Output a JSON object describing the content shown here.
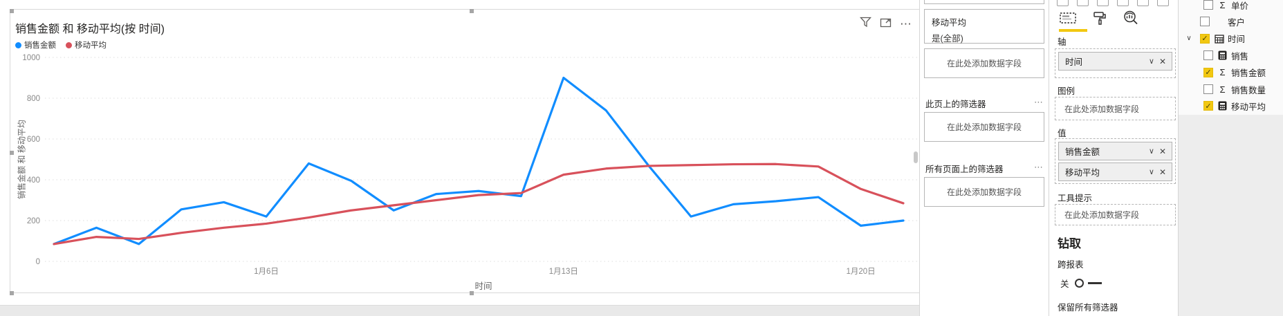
{
  "chart": {
    "title": "销售金额 和 移动平均(按 时间)",
    "y_axis": {
      "title": "销售金额 和 移动平均",
      "ticks": [
        0,
        200,
        400,
        600,
        800,
        1000
      ]
    },
    "x_axis": {
      "title": "时间",
      "tick_indices": [
        5,
        12,
        19
      ]
    },
    "chart_data": {
      "type": "line",
      "x": [
        "1月1日",
        "1月2日",
        "1月3日",
        "1月4日",
        "1月5日",
        "1月6日",
        "1月7日",
        "1月8日",
        "1月9日",
        "1月10日",
        "1月11日",
        "1月12日",
        "1月13日",
        "1月14日",
        "1月15日",
        "1月16日",
        "1月17日",
        "1月18日",
        "1月19日",
        "1月20日",
        "1月21日"
      ],
      "series": [
        {
          "name": "销售金额",
          "color": "#118DFF",
          "values": [
            85,
            165,
            85,
            255,
            290,
            220,
            480,
            395,
            250,
            330,
            345,
            320,
            900,
            740,
            470,
            220,
            280,
            295,
            315,
            175,
            200
          ]
        },
        {
          "name": "移动平均",
          "color": "#D8515B",
          "values": [
            85,
            120,
            110,
            140,
            165,
            185,
            215,
            250,
            275,
            300,
            325,
            335,
            425,
            455,
            468,
            472,
            476,
            477,
            465,
            355,
            285
          ]
        }
      ],
      "title": "销售金额 和 移动平均(按 时间)",
      "xlabel": "时间",
      "ylabel": "销售金额 和 移动平均",
      "ylim": [
        0,
        1000
      ],
      "grid": "horizontal-dotted",
      "legend_position": "top-left"
    }
  },
  "visual_header": {
    "more_icon": "⋯"
  },
  "filters_pane": {
    "filter_card": {
      "field": "移动平均",
      "condition": "是(全部)"
    },
    "drop_placeholder": "在此处添加数据字段",
    "page_filters_label": "此页上的筛选器",
    "all_pages_filters_label": "所有页面上的筛选器",
    "more_icon": "⋯"
  },
  "viz_pane": {
    "axis_label": "轴",
    "axis_fields": [
      "时间"
    ],
    "legend_label": "图例",
    "values_label": "值",
    "value_fields": [
      "销售金额",
      "移动平均"
    ],
    "tooltip_label": "工具提示",
    "drop_placeholder": "在此处添加数据字段",
    "drill_title": "钻取",
    "cross_report_label": "跨报表",
    "toggle_state": "关",
    "keep_filters_label": "保留所有筛选器",
    "chevron_icon": "∨",
    "remove_icon": "✕"
  },
  "fields_pane": {
    "check_glyph": "✓",
    "chevron_glyph": "∨",
    "items": [
      {
        "label": "单价",
        "checked": false,
        "icon": "sigma",
        "child": true
      },
      {
        "label": "客户",
        "checked": false,
        "icon": "none",
        "child": false
      },
      {
        "label": "时间",
        "checked": true,
        "icon": "calendar",
        "child": false,
        "expanded": true
      },
      {
        "label": "销售",
        "checked": false,
        "icon": "calc",
        "child": true
      },
      {
        "label": "销售金额",
        "checked": true,
        "icon": "sigma",
        "child": true
      },
      {
        "label": "销售数量",
        "checked": false,
        "icon": "sigma",
        "child": true
      },
      {
        "label": "移动平均",
        "checked": true,
        "icon": "calc",
        "child": true
      }
    ]
  }
}
